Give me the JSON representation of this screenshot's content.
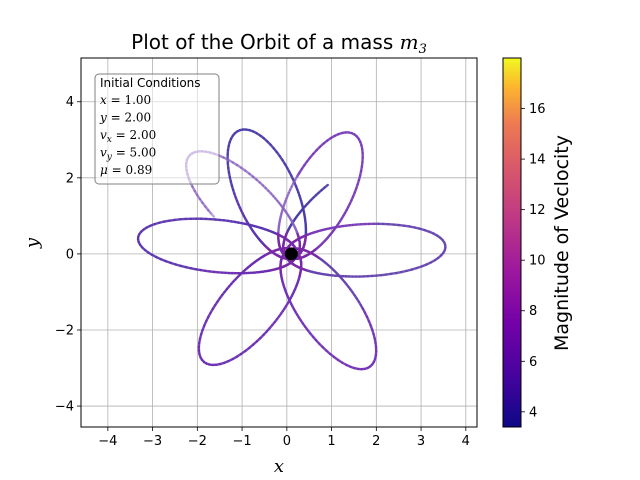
{
  "chart_data": {
    "type": "line",
    "title": "Plot of the Orbit of a mass ",
    "title_math": "m",
    "title_sub": "3",
    "xlabel": "x",
    "ylabel": "y",
    "xlim": [
      -4.6,
      4.25
    ],
    "ylim": [
      -4.55,
      5.15
    ],
    "grid": true,
    "x_ticks": [
      -4,
      -3,
      -2,
      -1,
      0,
      1,
      2,
      3,
      4
    ],
    "x_tick_labels": [
      "−4",
      "−3",
      "−2",
      "−1",
      "0",
      "1",
      "2",
      "3",
      "4"
    ],
    "y_ticks": [
      -4,
      -2,
      0,
      2,
      4
    ],
    "y_tick_labels": [
      "−4",
      "−2",
      "0",
      "2",
      "4"
    ],
    "central_mass": {
      "x": 0.1,
      "y": 0.0,
      "color": "#000000"
    },
    "orbit": {
      "start": [
        1.0,
        2.0
      ],
      "apoapsis": 3.45,
      "periapsis": 0.1,
      "loops": 7,
      "precession_deg": 54,
      "color_scale": "plasma",
      "speed_range": [
        3.4,
        18.0
      ]
    },
    "colorbar": {
      "label": "Magnitude of Veclocity",
      "ticks": [
        4,
        6,
        8,
        10,
        12,
        14,
        16
      ],
      "tick_labels": [
        "4",
        "6",
        "8",
        "10",
        "12",
        "14",
        "16"
      ],
      "range": [
        3.4,
        18.0
      ]
    },
    "legend": {
      "placement": "top-left",
      "title": "Initial Conditions",
      "entries": [
        {
          "var": "x",
          "sub": "",
          "value": "= 1.00"
        },
        {
          "var": "y",
          "sub": "",
          "value": "= 2.00"
        },
        {
          "var": "v",
          "sub": "x",
          "value": "= 2.00"
        },
        {
          "var": "v",
          "sub": "y",
          "value": "= 5.00"
        },
        {
          "var": "μ",
          "sub": "",
          "value": "= 0.89"
        }
      ]
    }
  }
}
